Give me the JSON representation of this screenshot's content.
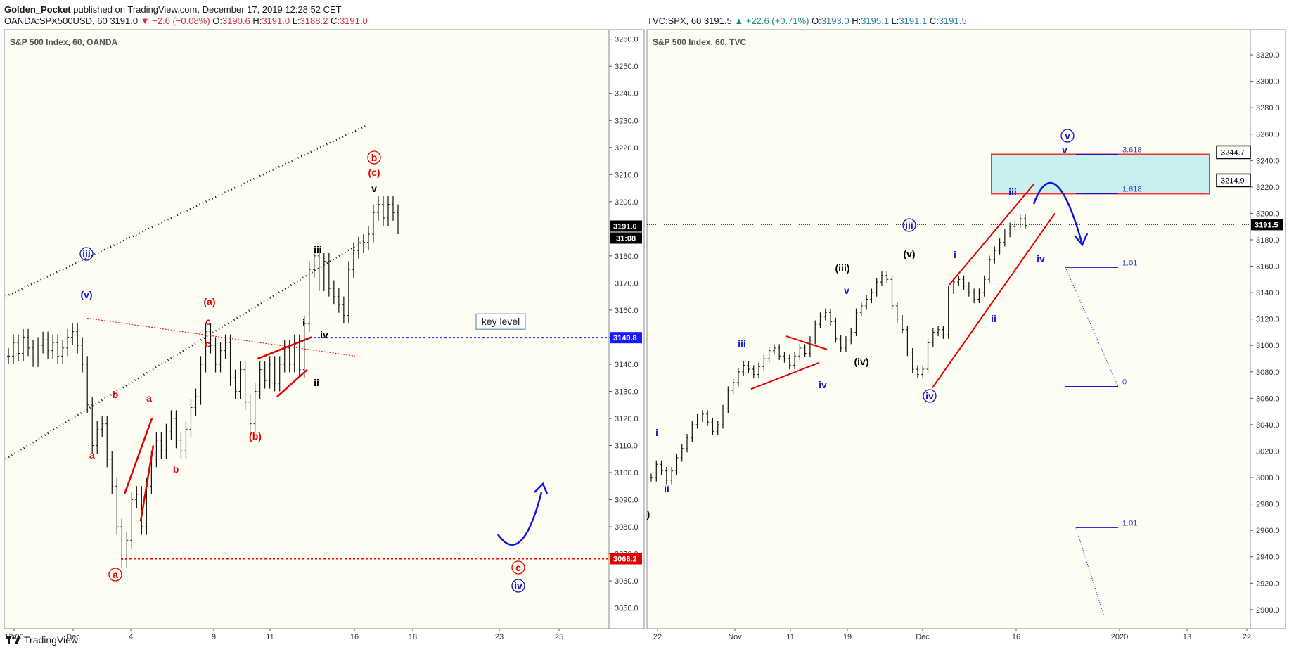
{
  "header": {
    "author": "Golden_Pocket",
    "published": "published on TradingView.com, December 17, 2019 12:28:52 CET",
    "left_symbol": "OANDA:SPX500USD, 60",
    "left_last": "3191.0",
    "left_change": "▼ −2.6 (−0.08%)",
    "left_o": "3190.6",
    "left_h": "3191.0",
    "left_l": "3188.2",
    "left_c": "3191.0",
    "right_symbol": "TVC:SPX, 60",
    "right_last": "3191.5",
    "right_change": "▲ +22.6 (+0.71%)",
    "right_o": "3193.0",
    "right_h": "3195.1",
    "right_l": "3191.1",
    "right_c": "3191.5"
  },
  "footer": {
    "brand": "TradingView"
  },
  "colors": {
    "panel_bg": "#fdfdf3",
    "red": "#e60000",
    "blue": "#1414c8",
    "black": "#000000",
    "price_tag": "#000000",
    "key_level": "#1a1aff",
    "support": "#ff0000",
    "box_fill": "#c8f0f0",
    "box_stroke": "#ff3030"
  },
  "chart_data": [
    {
      "type": "line",
      "title": "S&P 500 Index, 60, OANDA",
      "x_ticks": [
        "12:00",
        "Dec",
        "4",
        "9",
        "11",
        "16",
        "18",
        "23",
        "25"
      ],
      "y_ticks": [
        3050.0,
        3060.0,
        3070.0,
        3080.0,
        3090.0,
        3100.0,
        3110.0,
        3120.0,
        3130.0,
        3140.0,
        3150.0,
        3160.0,
        3170.0,
        3180.0,
        3190.0,
        3200.0,
        3210.0,
        3220.0,
        3230.0,
        3240.0,
        3250.0,
        3260.0
      ],
      "ylim": [
        3046,
        3262
      ],
      "last_price": "3191.0",
      "countdown": "31:08",
      "key_level": {
        "label": "key level",
        "value": "3149.8"
      },
      "support": {
        "value": "3068.2"
      },
      "series": [
        {
          "values": [
            3143,
            3148,
            3144,
            3150,
            3146,
            3142,
            3147,
            3149,
            3145,
            3148,
            3143,
            3146,
            3150,
            3152,
            3147,
            3140,
            3125,
            3110,
            3116,
            3118,
            3105,
            3095,
            3080,
            3068,
            3075,
            3090,
            3092,
            3080,
            3095,
            3105,
            3112,
            3108,
            3115,
            3120,
            3112,
            3108,
            3116,
            3124,
            3128,
            3140,
            3152,
            3147,
            3140,
            3145,
            3148,
            3135,
            3130,
            3138,
            3126,
            3118,
            3130,
            3138,
            3134,
            3140,
            3133,
            3140,
            3146,
            3140,
            3148,
            3138,
            3155,
            3175,
            3180,
            3170,
            3178,
            3168,
            3165,
            3162,
            3158,
            3175,
            3182,
            3184,
            3185,
            3188,
            3196,
            3199,
            3194,
            3199,
            3196,
            3191
          ]
        }
      ],
      "wave_labels": [
        {
          "text": "iii",
          "circled": true,
          "color": "blue"
        },
        {
          "text": "(v)",
          "color": "blue"
        },
        {
          "text": "b",
          "color": "red"
        },
        {
          "text": "a",
          "color": "red"
        },
        {
          "text": "a",
          "color": "red"
        },
        {
          "text": "b",
          "color": "red"
        },
        {
          "text": "c",
          "color": "red"
        },
        {
          "text": "a",
          "circled": true,
          "color": "red"
        },
        {
          "text": "(a)",
          "color": "red"
        },
        {
          "text": "c",
          "color": "red"
        },
        {
          "text": "(b)",
          "color": "red"
        },
        {
          "text": "i",
          "color": "black"
        },
        {
          "text": "ii",
          "color": "black"
        },
        {
          "text": "iii",
          "color": "black"
        },
        {
          "text": "iv",
          "color": "black"
        },
        {
          "text": "v",
          "color": "black"
        },
        {
          "text": "b",
          "circled": true,
          "color": "red"
        },
        {
          "text": "(c)",
          "color": "red"
        },
        {
          "text": "c",
          "circled": true,
          "color": "red"
        },
        {
          "text": "iv",
          "circled": true,
          "color": "blue"
        }
      ]
    },
    {
      "type": "line",
      "title": "S&P 500 Index, 60, TVC",
      "x_ticks": [
        "22",
        "Nov",
        "11",
        "19",
        "Dec",
        "16",
        "2020",
        "13",
        "22"
      ],
      "y_ticks": [
        2900.0,
        2920.0,
        2940.0,
        2960.0,
        2980.0,
        3000.0,
        3020.0,
        3040.0,
        3060.0,
        3080.0,
        3100.0,
        3120.0,
        3140.0,
        3160.0,
        3180.0,
        3200.0,
        3220.0,
        3240.0,
        3260.0,
        3280.0,
        3300.0,
        3320.0
      ],
      "ylim": [
        2893,
        3336
      ],
      "last_price": "3191.5",
      "callouts": [
        "3244.7",
        "3214.9"
      ],
      "fib_levels": [
        "3.618",
        "1.618",
        "1.01",
        "0",
        "1.01"
      ],
      "series": [
        {
          "values": [
            3000,
            3010,
            3005,
            2998,
            3005,
            3015,
            3022,
            3030,
            3040,
            3045,
            3048,
            3042,
            3035,
            3040,
            3052,
            3066,
            3072,
            3080,
            3085,
            3082,
            3078,
            3084,
            3090,
            3096,
            3098,
            3092,
            3090,
            3085,
            3092,
            3098,
            3094,
            3104,
            3116,
            3122,
            3125,
            3118,
            3105,
            3098,
            3104,
            3110,
            3125,
            3130,
            3135,
            3140,
            3148,
            3153,
            3150,
            3130,
            3120,
            3112,
            3095,
            3082,
            3078,
            3082,
            3102,
            3110,
            3112,
            3108,
            3142,
            3148,
            3150,
            3145,
            3140,
            3135,
            3140,
            3150,
            3165,
            3172,
            3178,
            3185,
            3190,
            3192,
            3196,
            3191
          ]
        }
      ],
      "wave_labels": [
        {
          "text": "i",
          "color": "blue"
        },
        {
          "text": "ii",
          "color": "blue"
        },
        {
          "text": "iii",
          "color": "blue"
        },
        {
          "text": "iv",
          "color": "blue"
        },
        {
          "text": "v",
          "color": "blue"
        },
        {
          "text": "(iii)",
          "color": "black"
        },
        {
          "text": "(iv)",
          "color": "black"
        },
        {
          "text": "(v)",
          "color": "black"
        },
        {
          "text": "iii",
          "circled": true,
          "color": "blue"
        },
        {
          "text": "iv",
          "circled": true,
          "color": "blue"
        },
        {
          "text": "i",
          "color": "blue"
        },
        {
          "text": "ii",
          "color": "blue"
        },
        {
          "text": "iii",
          "color": "blue"
        },
        {
          "text": "iv",
          "color": "blue"
        },
        {
          "text": "v",
          "color": "blue"
        },
        {
          "text": "v",
          "circled": true,
          "color": "blue"
        },
        {
          "text": ")",
          "color": "black"
        }
      ]
    }
  ]
}
